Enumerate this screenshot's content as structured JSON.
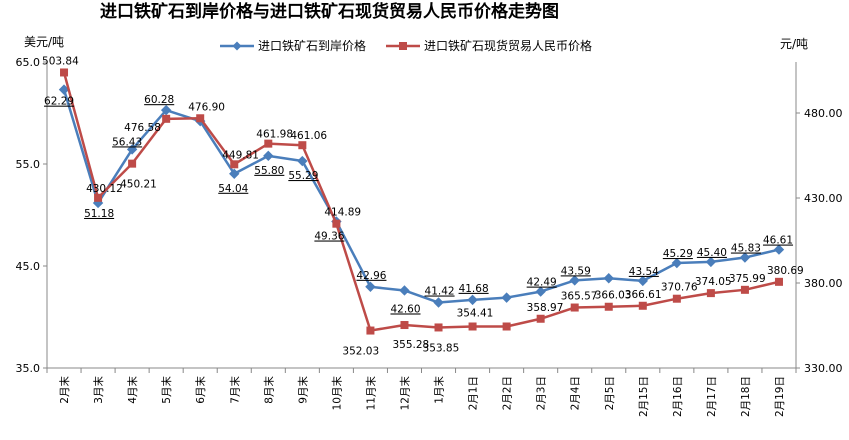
{
  "chart_data": {
    "type": "line",
    "title": "进口铁矿石到岸价格与进口铁矿石现货贸易人民币价格走势图",
    "ylabel_left": "美元/吨",
    "ylabel_right": "元/吨",
    "categories": [
      "2月末",
      "3月末",
      "4月末",
      "5月末",
      "6月末",
      "7月末",
      "8月末",
      "9月末",
      "10月末",
      "11月末",
      "12月末",
      "1月末",
      "2月1日",
      "2月2日",
      "2月3日",
      "2月4日",
      "2月5日",
      "2月15日",
      "2月16日",
      "2月17日",
      "2月18日",
      "2月19日"
    ],
    "left_axis": {
      "min": 35.0,
      "max": 65.0,
      "ticks": [
        "35.0",
        "45.0",
        "55.0",
        "65.0"
      ]
    },
    "right_axis": {
      "min": 330,
      "max": 510,
      "ticks": [
        "330.00",
        "380.00",
        "430.00",
        "480.00"
      ]
    },
    "legend_position": "top",
    "grid": false,
    "series": [
      {
        "name": "进口铁矿石到岸价格",
        "axis": "left",
        "color": "#4a7ebb",
        "marker": "diamond",
        "values": [
          62.29,
          51.18,
          56.43,
          60.28,
          59.2,
          54.04,
          55.8,
          55.29,
          49.36,
          42.96,
          42.6,
          41.42,
          41.68,
          41.9,
          42.49,
          43.59,
          43.8,
          43.54,
          45.29,
          45.4,
          45.83,
          46.61
        ],
        "labels": [
          "62.29",
          "51.18",
          "56.43",
          "60.28",
          "",
          "54.04",
          "55.80",
          "55.29",
          "49.36",
          "42.96",
          "42.60",
          "41.42",
          "41.68",
          "",
          "42.49",
          "43.59",
          "",
          "43.54",
          "45.29",
          "45.40",
          "45.83",
          "46.61"
        ]
      },
      {
        "name": "进口铁矿石现货贸易人民币价格",
        "axis": "right",
        "color": "#be4b48",
        "marker": "square",
        "values": [
          503.84,
          430.12,
          450.21,
          476.58,
          476.9,
          449.81,
          461.98,
          461.06,
          414.89,
          352.03,
          355.28,
          353.85,
          354.41,
          354.41,
          358.97,
          365.57,
          366.03,
          366.61,
          370.76,
          374.05,
          375.99,
          380.69
        ],
        "labels": [
          "503.84",
          "430.12",
          "450.21",
          "476.58",
          "476.90",
          "449.81",
          "461.98",
          "461.06",
          "414.89",
          "352.03",
          "355.28",
          "353.85",
          "354.41",
          "",
          "358.97",
          "365.57",
          "366.03",
          "366.61",
          "370.76",
          "374.05",
          "375.99",
          "380.69"
        ]
      }
    ]
  }
}
